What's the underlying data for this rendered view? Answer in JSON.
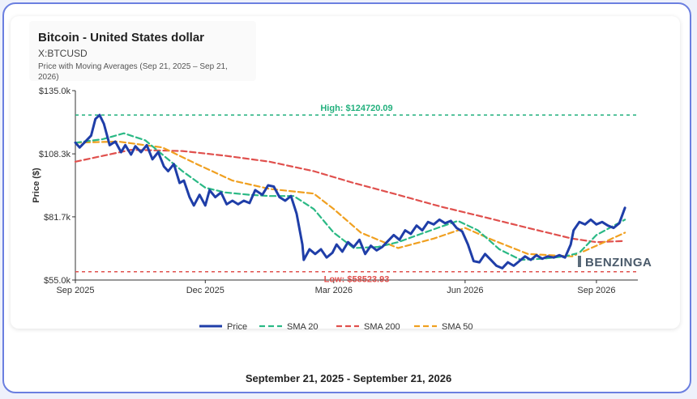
{
  "header": {
    "title": "Bitcoin - United States dollar",
    "ticker": "X:BTCUSD",
    "description": "Price with Moving Averages (Sep 21, 2025 – Sep 21, 2026)"
  },
  "footer": {
    "date_range": "September 21, 2025 - September 21, 2026"
  },
  "watermark": "BENZINGA",
  "chart_data": {
    "type": "line",
    "ylabel": "Price ($)",
    "ylim": [
      55000,
      135000
    ],
    "xlim": [
      "2025-09-01",
      "2026-09-30"
    ],
    "y_ticks": [
      {
        "value": 55000,
        "label": "$55.0k"
      },
      {
        "value": 81700,
        "label": "$81.7k"
      },
      {
        "value": 108300,
        "label": "$108.3k"
      },
      {
        "value": 135000,
        "label": "$135.0k"
      }
    ],
    "x_ticks": [
      {
        "date": "2025-09-01",
        "label": "Sep 2025"
      },
      {
        "date": "2025-12-01",
        "label": "Dec 2025"
      },
      {
        "date": "2026-03-01",
        "label": "Mar 2026"
      },
      {
        "date": "2026-06-01",
        "label": "Jun 2026"
      },
      {
        "date": "2026-09-01",
        "label": "Sep 2026"
      }
    ],
    "annotations": [
      {
        "label": "High: $124720.09",
        "value": 124720.09,
        "color": "#22b07d"
      },
      {
        "label": "Low: $58523.93",
        "value": 58523.93,
        "color": "#e0504d"
      }
    ],
    "legend_position": "bottom",
    "grid": false,
    "series": [
      {
        "name": "Price",
        "color": "#1f3ea8",
        "points": [
          [
            "2025-09-01",
            113000
          ],
          [
            "2025-09-04",
            111000
          ],
          [
            "2025-09-08",
            113500
          ],
          [
            "2025-09-12",
            116000
          ],
          [
            "2025-09-15",
            123000
          ],
          [
            "2025-09-18",
            124700
          ],
          [
            "2025-09-21",
            121000
          ],
          [
            "2025-09-25",
            112000
          ],
          [
            "2025-09-29",
            113500
          ],
          [
            "2025-10-03",
            109000
          ],
          [
            "2025-10-06",
            112000
          ],
          [
            "2025-10-10",
            108000
          ],
          [
            "2025-10-13",
            111500
          ],
          [
            "2025-10-17",
            109000
          ],
          [
            "2025-10-21",
            112000
          ],
          [
            "2025-10-25",
            106000
          ],
          [
            "2025-10-29",
            109000
          ],
          [
            "2025-11-02",
            103000
          ],
          [
            "2025-11-05",
            101000
          ],
          [
            "2025-11-09",
            104000
          ],
          [
            "2025-11-13",
            96000
          ],
          [
            "2025-11-16",
            97000
          ],
          [
            "2025-11-20",
            90000
          ],
          [
            "2025-11-23",
            86500
          ],
          [
            "2025-11-27",
            91000
          ],
          [
            "2025-12-01",
            86500
          ],
          [
            "2025-12-04",
            93000
          ],
          [
            "2025-12-08",
            90000
          ],
          [
            "2025-12-12",
            92000
          ],
          [
            "2025-12-16",
            87000
          ],
          [
            "2025-12-20",
            88500
          ],
          [
            "2025-12-24",
            87000
          ],
          [
            "2025-12-28",
            88500
          ],
          [
            "2026-01-01",
            87500
          ],
          [
            "2026-01-05",
            93000
          ],
          [
            "2026-01-10",
            91000
          ],
          [
            "2026-01-14",
            95000
          ],
          [
            "2026-01-18",
            94500
          ],
          [
            "2026-01-22",
            90000
          ],
          [
            "2026-01-26",
            88500
          ],
          [
            "2026-01-30",
            90500
          ],
          [
            "2026-02-03",
            83000
          ],
          [
            "2026-02-07",
            70000
          ],
          [
            "2026-02-08",
            63500
          ],
          [
            "2026-02-12",
            68000
          ],
          [
            "2026-02-16",
            66000
          ],
          [
            "2026-02-20",
            68000
          ],
          [
            "2026-02-24",
            64500
          ],
          [
            "2026-02-28",
            66500
          ],
          [
            "2026-03-03",
            70000
          ],
          [
            "2026-03-07",
            67000
          ],
          [
            "2026-03-11",
            71000
          ],
          [
            "2026-03-15",
            69000
          ],
          [
            "2026-03-19",
            72000
          ],
          [
            "2026-03-23",
            66000
          ],
          [
            "2026-03-27",
            69500
          ],
          [
            "2026-03-31",
            67500
          ],
          [
            "2026-04-04",
            69000
          ],
          [
            "2026-04-08",
            71500
          ],
          [
            "2026-04-12",
            74000
          ],
          [
            "2026-04-16",
            72000
          ],
          [
            "2026-04-20",
            76000
          ],
          [
            "2026-04-24",
            74500
          ],
          [
            "2026-04-28",
            78000
          ],
          [
            "2026-05-02",
            76000
          ],
          [
            "2026-05-06",
            79500
          ],
          [
            "2026-05-10",
            78500
          ],
          [
            "2026-05-14",
            80500
          ],
          [
            "2026-05-18",
            79000
          ],
          [
            "2026-05-22",
            80000
          ],
          [
            "2026-05-26",
            77000
          ],
          [
            "2026-05-30",
            75500
          ],
          [
            "2026-06-03",
            70000
          ],
          [
            "2026-06-07",
            63000
          ],
          [
            "2026-06-11",
            62500
          ],
          [
            "2026-06-15",
            66000
          ],
          [
            "2026-06-19",
            63500
          ],
          [
            "2026-06-23",
            61000
          ],
          [
            "2026-06-27",
            60000
          ],
          [
            "2026-07-01",
            62500
          ],
          [
            "2026-07-05",
            61000
          ],
          [
            "2026-07-09",
            63000
          ],
          [
            "2026-07-13",
            65000
          ],
          [
            "2026-07-17",
            63500
          ],
          [
            "2026-07-21",
            65500
          ],
          [
            "2026-07-25",
            64000
          ],
          [
            "2026-07-29",
            65000
          ],
          [
            "2026-08-02",
            64500
          ],
          [
            "2026-08-06",
            65500
          ],
          [
            "2026-08-10",
            64500
          ],
          [
            "2026-08-14",
            70000
          ],
          [
            "2026-08-16",
            76000
          ],
          [
            "2026-08-20",
            79500
          ],
          [
            "2026-08-24",
            78500
          ],
          [
            "2026-08-28",
            80500
          ],
          [
            "2026-09-01",
            78500
          ],
          [
            "2026-09-05",
            79500
          ],
          [
            "2026-09-09",
            78000
          ],
          [
            "2026-09-13",
            77000
          ],
          [
            "2026-09-17",
            79000
          ],
          [
            "2026-09-21",
            85500
          ]
        ]
      },
      {
        "name": "SMA 20",
        "color": "#2bb985",
        "points": [
          [
            "2025-09-01",
            113000
          ],
          [
            "2025-09-20",
            114500
          ],
          [
            "2025-10-05",
            117000
          ],
          [
            "2025-10-20",
            114000
          ],
          [
            "2025-11-01",
            108000
          ],
          [
            "2025-11-15",
            101000
          ],
          [
            "2025-12-01",
            94000
          ],
          [
            "2025-12-15",
            92000
          ],
          [
            "2026-01-01",
            91000
          ],
          [
            "2026-01-15",
            90500
          ],
          [
            "2026-02-01",
            90500
          ],
          [
            "2026-02-15",
            85000
          ],
          [
            "2026-03-01",
            75000
          ],
          [
            "2026-03-15",
            68500
          ],
          [
            "2026-04-01",
            69000
          ],
          [
            "2026-04-15",
            71000
          ],
          [
            "2026-05-01",
            74500
          ],
          [
            "2026-05-15",
            77500
          ],
          [
            "2026-05-27",
            80000
          ],
          [
            "2026-06-10",
            76000
          ],
          [
            "2026-06-25",
            68000
          ],
          [
            "2026-07-10",
            63500
          ],
          [
            "2026-07-25",
            64000
          ],
          [
            "2026-08-10",
            65000
          ],
          [
            "2026-08-20",
            66500
          ],
          [
            "2026-09-01",
            74000
          ],
          [
            "2026-09-21",
            80500
          ]
        ]
      },
      {
        "name": "SMA 200",
        "color": "#e0504d",
        "points": [
          [
            "2025-09-01",
            105000
          ],
          [
            "2025-10-10",
            110000
          ],
          [
            "2025-11-15",
            109500
          ],
          [
            "2025-12-15",
            107500
          ],
          [
            "2026-01-15",
            105000
          ],
          [
            "2026-02-15",
            101000
          ],
          [
            "2026-03-15",
            96000
          ],
          [
            "2026-04-15",
            91000
          ],
          [
            "2026-05-15",
            86000
          ],
          [
            "2026-06-15",
            81500
          ],
          [
            "2026-07-15",
            77000
          ],
          [
            "2026-08-15",
            72500
          ],
          [
            "2026-09-01",
            71000
          ],
          [
            "2026-09-21",
            71500
          ]
        ]
      },
      {
        "name": "SMA 50",
        "color": "#f0a020",
        "points": [
          [
            "2025-09-01",
            113000
          ],
          [
            "2025-10-01",
            113500
          ],
          [
            "2025-11-01",
            111000
          ],
          [
            "2025-11-25",
            104000
          ],
          [
            "2025-12-20",
            97000
          ],
          [
            "2026-01-15",
            93500
          ],
          [
            "2026-02-15",
            91500
          ],
          [
            "2026-03-01",
            85000
          ],
          [
            "2026-03-20",
            75000
          ],
          [
            "2026-04-15",
            68500
          ],
          [
            "2026-05-10",
            72500
          ],
          [
            "2026-06-01",
            77000
          ],
          [
            "2026-06-20",
            72000
          ],
          [
            "2026-07-15",
            66000
          ],
          [
            "2026-08-15",
            65000
          ],
          [
            "2026-09-01",
            69500
          ],
          [
            "2026-09-21",
            75000
          ]
        ]
      }
    ]
  }
}
